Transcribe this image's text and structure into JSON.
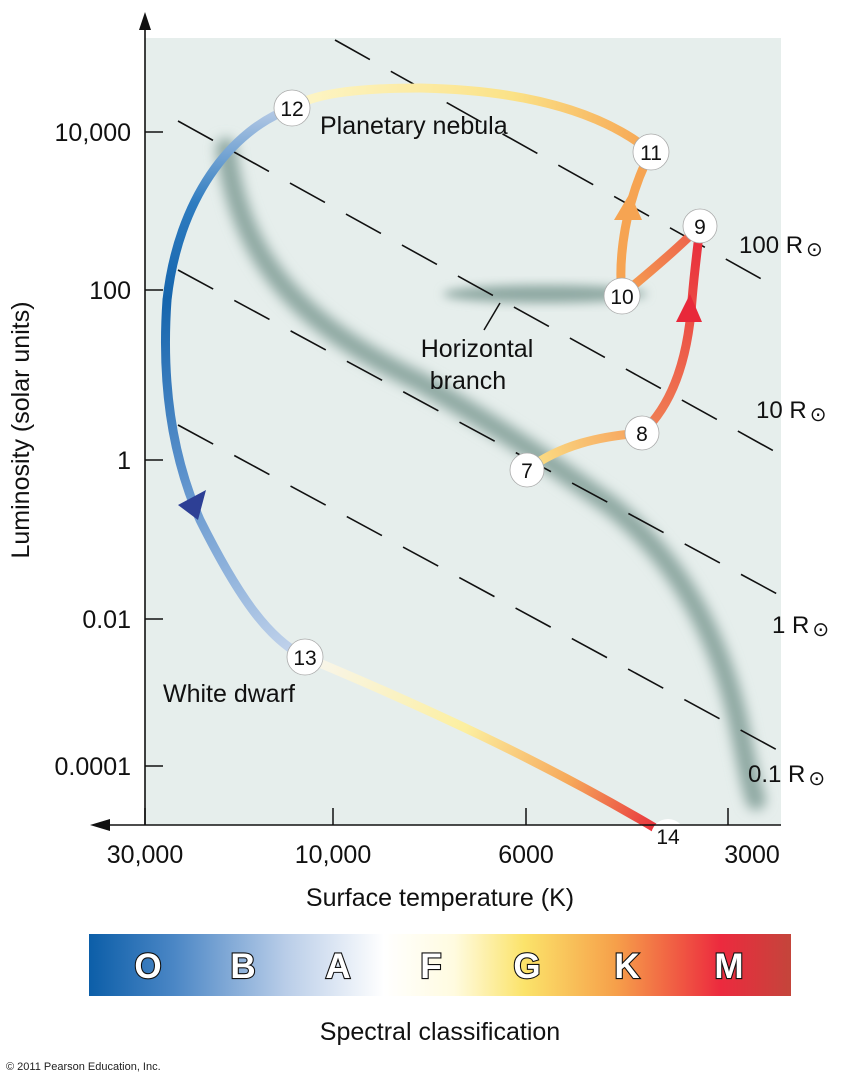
{
  "diagram": {
    "y_axis": {
      "title": "Luminosity (solar units)",
      "ticks": [
        "10,000",
        "100",
        "1",
        "0.01",
        "0.0001"
      ]
    },
    "x_axis": {
      "title": "Surface temperature (K)",
      "ticks": [
        "30,000",
        "10,000",
        "6000",
        "3000"
      ]
    },
    "regions": {
      "planetary_nebula": "Planetary nebula",
      "horizontal_branch": [
        "Horizontal",
        "branch"
      ],
      "white_dwarf": "White dwarf"
    },
    "radius_lines": [
      {
        "label": "100 R",
        "symbol": "⊙"
      },
      {
        "label": "10 R",
        "symbol": "⊙"
      },
      {
        "label": "1 R",
        "symbol": "⊙"
      },
      {
        "label": "0.1 R",
        "symbol": "⊙"
      }
    ],
    "stages": [
      "7",
      "8",
      "9",
      "10",
      "11",
      "12",
      "13",
      "14"
    ],
    "spectral": {
      "letters": [
        "O",
        "B",
        "A",
        "F",
        "G",
        "K",
        "M"
      ],
      "title": "Spectral classification"
    },
    "copyright": "© 2011 Pearson Education, Inc."
  },
  "colors": {
    "plot_background": "#e6eeec",
    "main_sequence_band": "#8fa9a3",
    "blue": "#1f6fb4",
    "red": "#e8283a",
    "orange": "#f4a04a",
    "yellow": "#fbe88a"
  }
}
